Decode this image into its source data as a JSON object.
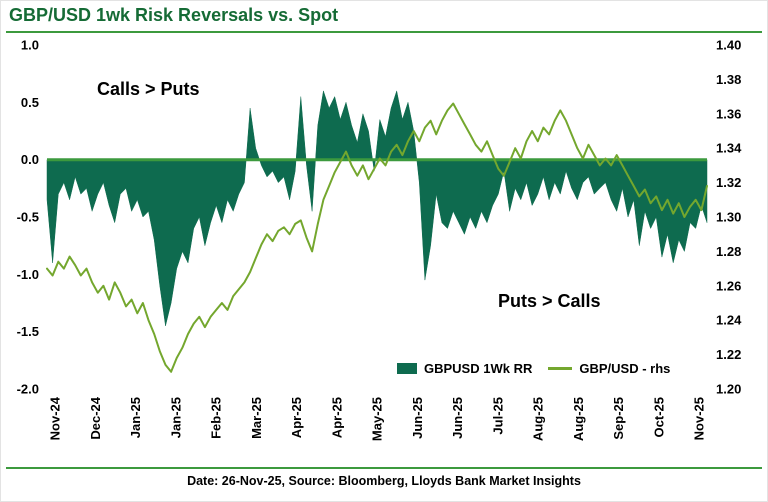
{
  "title": "GBP/USD 1wk Risk Reversals vs. Spot",
  "footer": "Date: 26-Nov-25, Source: Bloomberg, Lloyds Bank Market Insights",
  "annotations": {
    "top_left": "Calls > Puts",
    "bottom_right": "Puts > Calls"
  },
  "legend": [
    {
      "label": "GBPUSD 1Wk RR",
      "swatch": "area",
      "color": "#0E6B4F"
    },
    {
      "label": "GBP/USD - rhs",
      "swatch": "line",
      "color": "#74A72E"
    }
  ],
  "colors": {
    "title_green": "#156B35",
    "accent_green": "#3C9A3E",
    "area_green": "#0E6B4F",
    "line_green": "#74A72E",
    "text": "#000000",
    "background": "#FFFFFF"
  },
  "chart_data": {
    "type": "area",
    "title": "GBP/USD 1wk Risk Reversals vs. Spot",
    "grid": false,
    "legend_position": "bottom-right-inside",
    "x_tick_labels": [
      "Nov-24",
      "Dec-24",
      "Jan-25",
      "Jan-25",
      "Feb-25",
      "Mar-25",
      "Apr-25",
      "Apr-25",
      "May-25",
      "Jun-25",
      "Jun-25",
      "Jul-25",
      "Aug-25",
      "Aug-25",
      "Sep-25",
      "Oct-25",
      "Nov-25"
    ],
    "left_axis": {
      "range": [
        -2.0,
        1.0
      ],
      "ticks": [
        "1.0",
        "0.5",
        "0.0",
        "-0.5",
        "-1.0",
        "-1.5",
        "-2.0"
      ]
    },
    "right_axis": {
      "range": [
        1.2,
        1.4
      ],
      "ticks": [
        "1.40",
        "1.38",
        "1.36",
        "1.34",
        "1.32",
        "1.30",
        "1.28",
        "1.26",
        "1.24",
        "1.22",
        "1.20"
      ]
    },
    "series": [
      {
        "name": "GBPUSD 1Wk RR",
        "type": "area",
        "axis": "left",
        "color": "#0E6B4F",
        "values": [
          -0.35,
          -0.9,
          -0.3,
          -0.2,
          -0.35,
          -0.15,
          -0.3,
          -0.25,
          -0.45,
          -0.3,
          -0.2,
          -0.4,
          -0.55,
          -0.3,
          -0.25,
          -0.45,
          -0.35,
          -0.5,
          -0.45,
          -0.7,
          -1.1,
          -1.45,
          -1.25,
          -0.95,
          -0.8,
          -0.9,
          -0.6,
          -0.5,
          -0.75,
          -0.55,
          -0.4,
          -0.55,
          -0.35,
          -0.45,
          -0.3,
          -0.2,
          0.45,
          0.1,
          -0.05,
          -0.15,
          -0.1,
          -0.2,
          -0.15,
          -0.35,
          -0.1,
          0.55,
          -0.05,
          -0.45,
          0.3,
          0.6,
          0.45,
          0.55,
          0.35,
          0.5,
          0.3,
          0.15,
          0.4,
          0.25,
          -0.1,
          0.35,
          0.2,
          0.45,
          0.6,
          0.35,
          0.5,
          0.25,
          -0.2,
          -1.05,
          -0.75,
          -0.3,
          -0.55,
          -0.6,
          -0.45,
          -0.55,
          -0.65,
          -0.5,
          -0.6,
          -0.45,
          -0.55,
          -0.4,
          -0.3,
          -0.1,
          -0.45,
          -0.25,
          -0.35,
          -0.2,
          -0.4,
          -0.3,
          -0.15,
          -0.35,
          -0.2,
          -0.3,
          -0.1,
          -0.25,
          -0.35,
          -0.2,
          -0.15,
          -0.3,
          -0.25,
          -0.2,
          -0.35,
          -0.45,
          -0.25,
          -0.5,
          -0.35,
          -0.75,
          -0.45,
          -0.6,
          -0.5,
          -0.85,
          -0.65,
          -0.9,
          -0.7,
          -0.8,
          -0.55,
          -0.6,
          -0.4,
          -0.55
        ]
      },
      {
        "name": "GBP/USD - rhs",
        "type": "line",
        "axis": "right",
        "color": "#74A72E",
        "values": [
          1.27,
          1.266,
          1.274,
          1.27,
          1.277,
          1.272,
          1.266,
          1.27,
          1.262,
          1.256,
          1.26,
          1.252,
          1.262,
          1.256,
          1.248,
          1.252,
          1.244,
          1.25,
          1.24,
          1.232,
          1.222,
          1.214,
          1.21,
          1.218,
          1.224,
          1.232,
          1.238,
          1.242,
          1.236,
          1.242,
          1.246,
          1.25,
          1.246,
          1.254,
          1.258,
          1.262,
          1.268,
          1.276,
          1.284,
          1.29,
          1.286,
          1.292,
          1.294,
          1.29,
          1.296,
          1.298,
          1.288,
          1.28,
          1.296,
          1.31,
          1.318,
          1.326,
          1.332,
          1.338,
          1.33,
          1.324,
          1.33,
          1.322,
          1.328,
          1.334,
          1.33,
          1.338,
          1.342,
          1.336,
          1.344,
          1.35,
          1.344,
          1.352,
          1.356,
          1.348,
          1.356,
          1.362,
          1.366,
          1.36,
          1.354,
          1.348,
          1.342,
          1.338,
          1.344,
          1.336,
          1.328,
          1.324,
          1.332,
          1.34,
          1.334,
          1.344,
          1.35,
          1.344,
          1.352,
          1.348,
          1.356,
          1.362,
          1.356,
          1.348,
          1.34,
          1.334,
          1.342,
          1.336,
          1.33,
          1.334,
          1.33,
          1.336,
          1.33,
          1.324,
          1.318,
          1.312,
          1.316,
          1.308,
          1.312,
          1.304,
          1.31,
          1.302,
          1.308,
          1.3,
          1.306,
          1.31,
          1.304,
          1.318
        ]
      }
    ]
  }
}
